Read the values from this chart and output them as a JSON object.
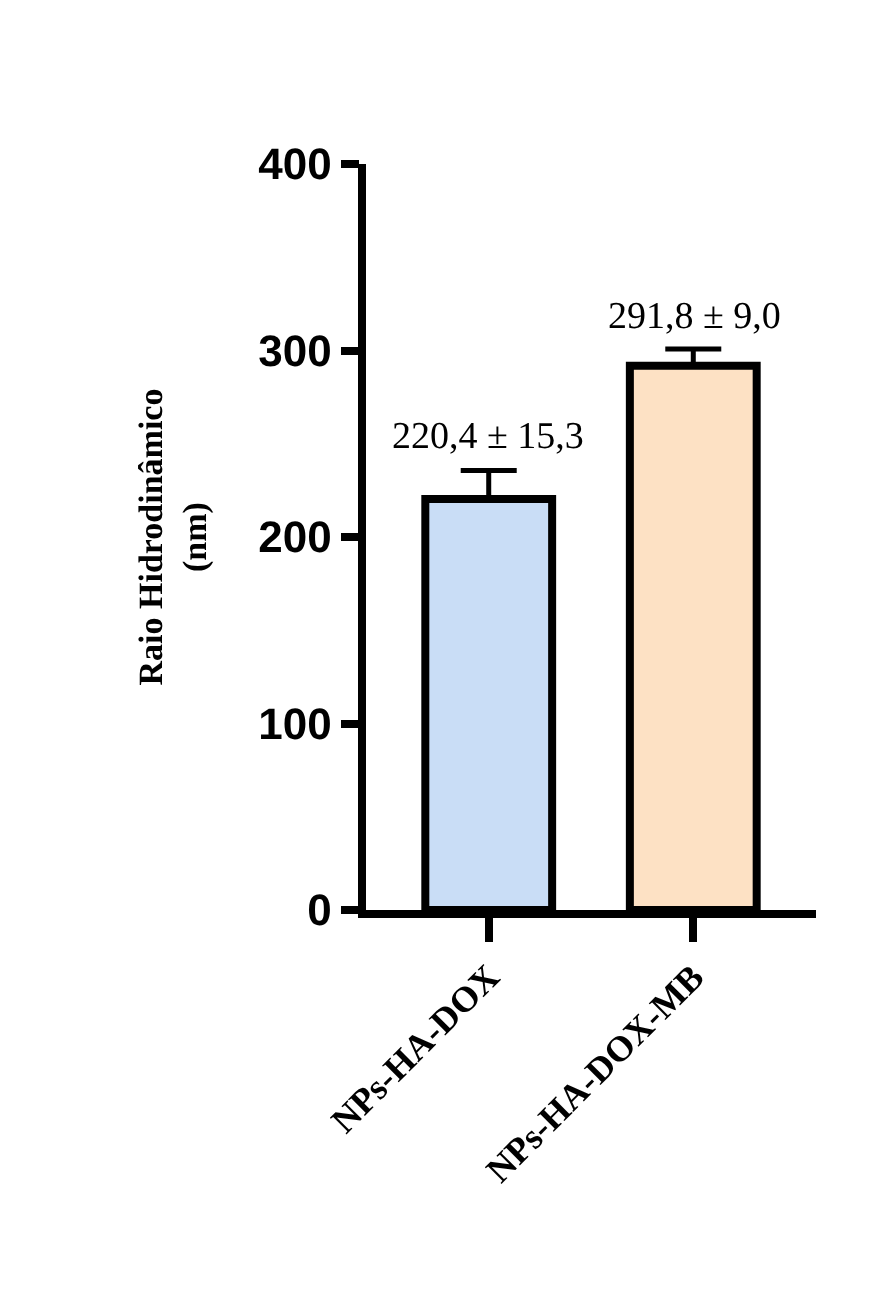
{
  "chart_data": {
    "type": "bar",
    "ylabel": "Raio Hidrodinâmico\n(nm)",
    "categories": [
      "NPs-HA-DOX",
      "NPs-HA-DOX-MB"
    ],
    "values": [
      220.4,
      291.8
    ],
    "errors": [
      15.3,
      9.0
    ],
    "value_labels": [
      "220,4 ± 15,3",
      "291,8 ± 9,0"
    ],
    "colors": [
      "#c9ddf6",
      "#fde1c4"
    ],
    "ylim": [
      0,
      400
    ],
    "yticks": [
      0,
      100,
      200,
      300,
      400
    ]
  }
}
